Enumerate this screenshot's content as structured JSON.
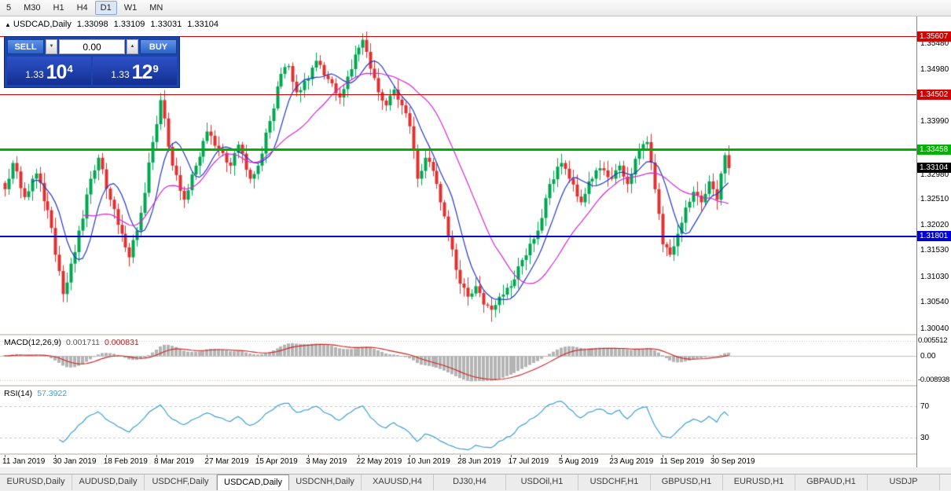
{
  "toolbar": {
    "timeframes": [
      "5",
      "M30",
      "H1",
      "H4",
      "D1",
      "W1",
      "MN"
    ],
    "active": "D1"
  },
  "chart": {
    "header": {
      "marker": "▲",
      "symbol": "USDCAD,Daily",
      "open": "1.33098",
      "high": "1.33109",
      "low": "1.33031",
      "close": "1.33104"
    },
    "trade_panel": {
      "sell_label": "SELL",
      "buy_label": "BUY",
      "lot_value": "0.00",
      "spinner_down": "▼",
      "spinner_up": "▲",
      "bid": {
        "big": "1.33",
        "pips": "10",
        "sup": "4"
      },
      "ask": {
        "big": "1.33",
        "pips": "12",
        "sup": "9"
      }
    },
    "price_axis": {
      "ticks": [
        "1.35480",
        "1.34980",
        "1.34480",
        "1.33990",
        "1.33480",
        "1.32980",
        "1.32510",
        "1.32020",
        "1.31530",
        "1.31030",
        "1.30540",
        "1.30040"
      ]
    },
    "levels": [
      {
        "value": 1.35607,
        "label": "1.35607",
        "color": "#d40000",
        "width": 1
      },
      {
        "value": 1.34502,
        "label": "1.34502",
        "color": "#d40000",
        "width": 1
      },
      {
        "value": 1.33458,
        "label": "1.33458",
        "color": "#00b200",
        "width": 3
      },
      {
        "value": 1.31801,
        "label": "1.31801",
        "color": "#0000d4",
        "width": 2
      }
    ],
    "current_price": {
      "value": 1.33104,
      "label": "1.33104",
      "color": "#000000"
    }
  },
  "macd": {
    "label": "MACD(12,26,9)",
    "value_main": "0.001711",
    "value_signal": "0.000831",
    "axis": [
      "0.005512",
      "0.00",
      "-0.008938"
    ],
    "axis_values": [
      0.005512,
      0,
      -0.008938
    ]
  },
  "rsi": {
    "label": "RSI(14)",
    "value": "57.3922",
    "level_labels": [
      "70",
      "30"
    ],
    "levels": [
      70,
      30
    ]
  },
  "tabs": {
    "active": "USDCAD,Daily",
    "items": [
      "EURUSD,Daily",
      "AUDUSD,Daily",
      "USDCHF,Daily",
      "USDCAD,Daily",
      "USDCNH,Daily",
      "XAUUSD,H4",
      "DJ30,H4",
      "USDOil,H1",
      "USDCHF,H1",
      "GBPUSD,H1",
      "EURUSD,H1",
      "GBPAUD,H1",
      "USDJP"
    ]
  },
  "chart_data": {
    "type": "candlestick",
    "symbol": "USDCAD",
    "timeframe": "Daily",
    "title": "USDCAD,Daily",
    "x_labels": [
      "11 Jan 2019",
      "30 Jan 2019",
      "18 Feb 2019",
      "8 Mar 2019",
      "27 Mar 2019",
      "15 Apr 2019",
      "3 May 2019",
      "22 May 2019",
      "10 Jun 2019",
      "28 Jun 2019",
      "17 Jul 2019",
      "5 Aug 2019",
      "23 Aug 2019",
      "11 Sep 2019",
      "30 Sep 2019"
    ],
    "candles_per_label": 13,
    "price_range": [
      1.2994,
      1.3601
    ],
    "closes": [
      1.327,
      1.329,
      1.332,
      1.3304,
      1.3272,
      1.3255,
      1.3266,
      1.329,
      1.33,
      1.3282,
      1.3247,
      1.323,
      1.3196,
      1.3145,
      1.3114,
      1.307,
      1.3092,
      1.3128,
      1.315,
      1.3191,
      1.3214,
      1.326,
      1.329,
      1.3306,
      1.333,
      1.3308,
      1.3271,
      1.325,
      1.3232,
      1.3202,
      1.3185,
      1.3159,
      1.314,
      1.3173,
      1.3191,
      1.3225,
      1.3263,
      1.3321,
      1.336,
      1.3394,
      1.344,
      1.3405,
      1.3351,
      1.3315,
      1.3297,
      1.3267,
      1.325,
      1.3268,
      1.3298,
      1.3315,
      1.3332,
      1.3362,
      1.338,
      1.3372,
      1.3353,
      1.3345,
      1.3339,
      1.3321,
      1.3315,
      1.3339,
      1.3355,
      1.3338,
      1.3307,
      1.329,
      1.3299,
      1.3315,
      1.3338,
      1.3378,
      1.34,
      1.3424,
      1.3466,
      1.349,
      1.3503,
      1.3505,
      1.3475,
      1.3455,
      1.3459,
      1.3477,
      1.348,
      1.3502,
      1.3515,
      1.3507,
      1.3487,
      1.348,
      1.3472,
      1.3453,
      1.3445,
      1.3461,
      1.3485,
      1.3499,
      1.3527,
      1.354,
      1.3555,
      1.3532,
      1.35,
      1.3482,
      1.3455,
      1.3439,
      1.343,
      1.3449,
      1.346,
      1.3441,
      1.343,
      1.3415,
      1.339,
      1.3346,
      1.329,
      1.3305,
      1.333,
      1.3322,
      1.3305,
      1.328,
      1.3245,
      1.3218,
      1.318,
      1.3155,
      1.3116,
      1.309,
      1.3082,
      1.3065,
      1.3071,
      1.3085,
      1.3072,
      1.305,
      1.3048,
      1.304,
      1.3049,
      1.3065,
      1.3069,
      1.3082,
      1.3085,
      1.3098,
      1.3123,
      1.3135,
      1.3144,
      1.3166,
      1.3175,
      1.3191,
      1.3215,
      1.3253,
      1.328,
      1.3289,
      1.3313,
      1.332,
      1.3309,
      1.329,
      1.3279,
      1.3256,
      1.3245,
      1.3261,
      1.3285,
      1.329,
      1.3306,
      1.331,
      1.3306,
      1.3293,
      1.329,
      1.3306,
      1.3315,
      1.3294,
      1.328,
      1.3298,
      1.3328,
      1.3345,
      1.3356,
      1.336,
      1.3321,
      1.327,
      1.3223,
      1.3165,
      1.3159,
      1.3145,
      1.3161,
      1.3185,
      1.3206,
      1.3235,
      1.3246,
      1.3265,
      1.3258,
      1.3245,
      1.3261,
      1.3285,
      1.327,
      1.325,
      1.33,
      1.3335,
      1.33104
    ],
    "overlays": [
      {
        "name": "ma-fast",
        "period": 8,
        "color": "#2238c8"
      },
      {
        "name": "ma-slow",
        "period": 21,
        "color": "#d428d4"
      }
    ],
    "indicators": {
      "macd": {
        "fast": 12,
        "slow": 26,
        "signal": 9,
        "hist_color": "#b4b4b4",
        "signal_color": "#cc2222"
      },
      "rsi": {
        "period": 14,
        "color": "#3d9fd6",
        "levels": [
          70,
          30
        ]
      }
    },
    "levels": [
      1.35607,
      1.34502,
      1.33458,
      1.31801
    ],
    "current": 1.33104,
    "up_color": "#00a651",
    "down_color": "#e03131"
  }
}
